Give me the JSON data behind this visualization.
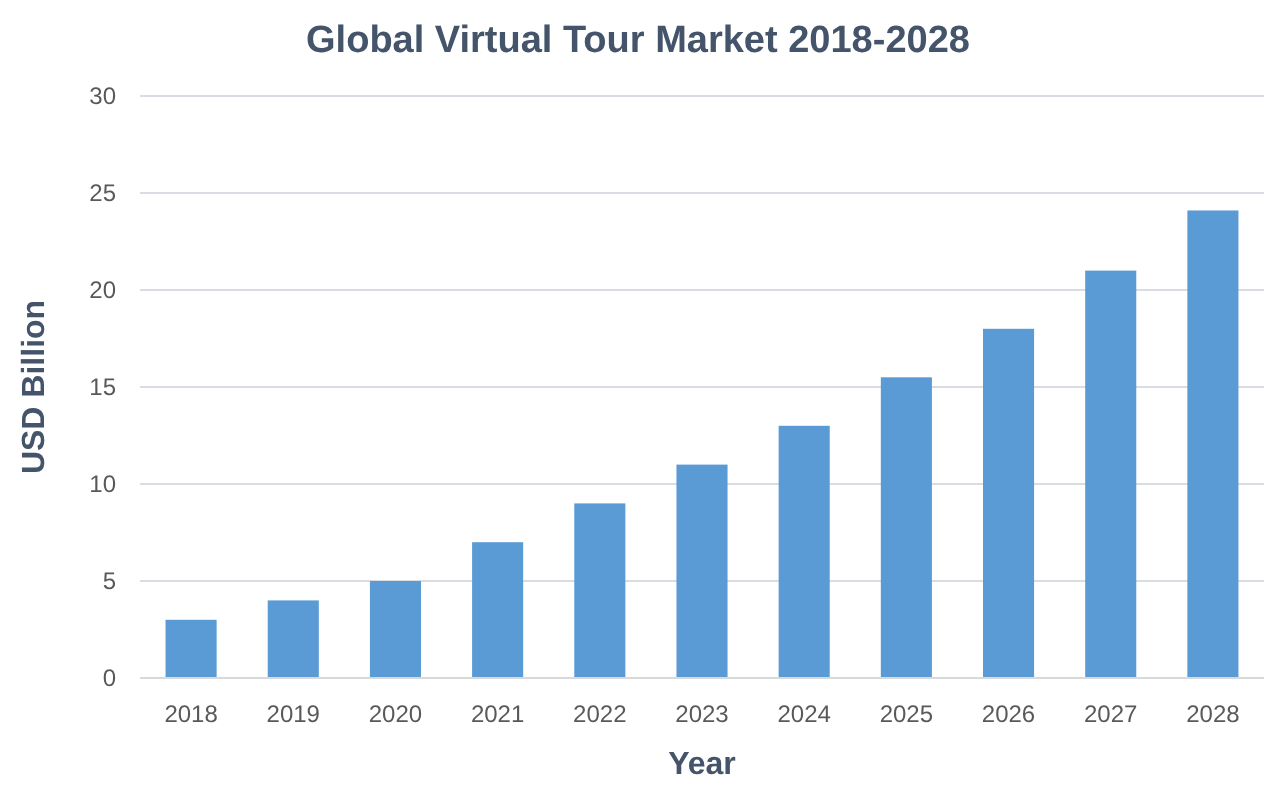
{
  "chart_data": {
    "type": "bar",
    "title": "Global Virtual Tour Market 2018-2028",
    "xlabel": "Year",
    "ylabel": "USD Billion",
    "categories": [
      "2018",
      "2019",
      "2020",
      "2021",
      "2022",
      "2023",
      "2024",
      "2025",
      "2026",
      "2027",
      "2028"
    ],
    "values": [
      3,
      4,
      5,
      7,
      9,
      11,
      13,
      15.5,
      18,
      21,
      24.1
    ],
    "color": "#5b9bd5",
    "ylim": [
      0,
      30
    ],
    "yticks": [
      0,
      5,
      10,
      15,
      20,
      25,
      30
    ],
    "grid": "y"
  }
}
